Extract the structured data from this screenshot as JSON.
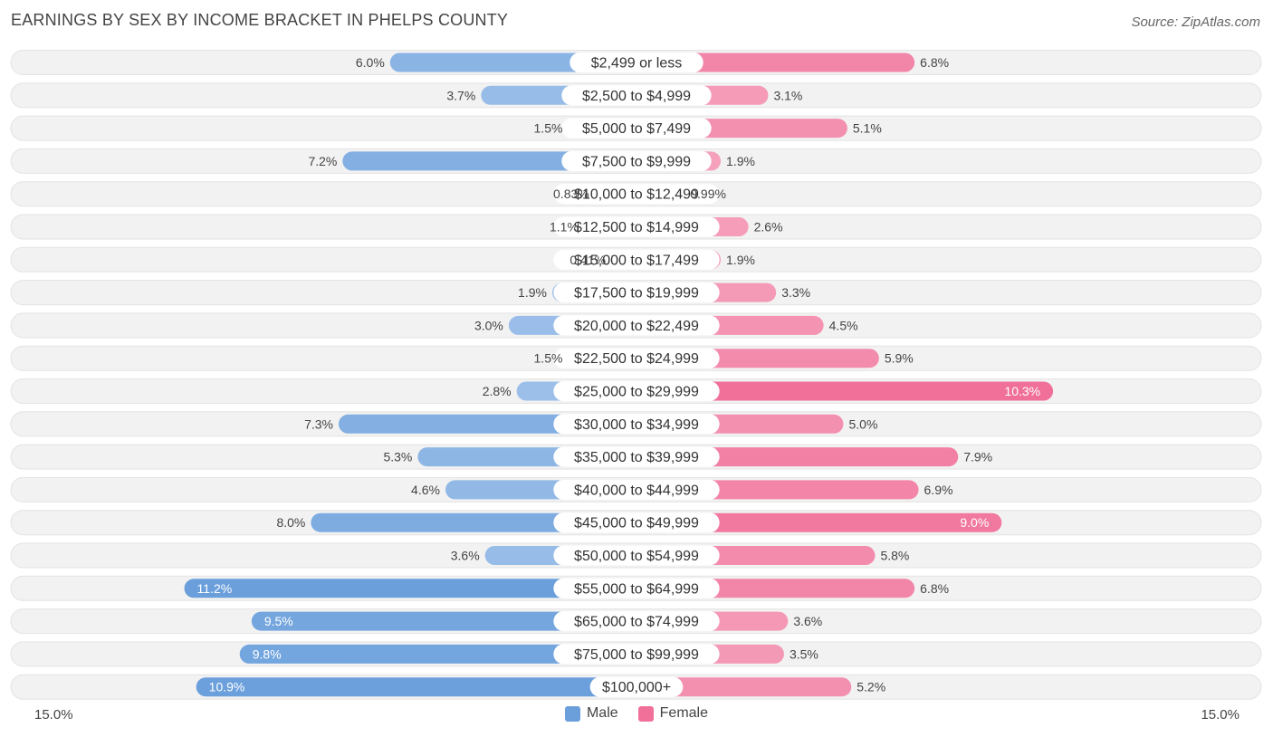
{
  "title": "EARNINGS BY SEX BY INCOME BRACKET IN PHELPS COUNTY",
  "source": "Source: ZipAtlas.com",
  "colors": {
    "male_light": "#a7c6ec",
    "male_dark": "#6a9fdb",
    "female_light": "#f6a8c0",
    "female_dark": "#f07099",
    "row_bg": "#f2f2f2",
    "row_border": "#e3e3e3"
  },
  "chart_data": {
    "type": "bar",
    "orientation": "horizontal-diverging",
    "title": "EARNINGS BY SEX BY INCOME BRACKET IN PHELPS COUNTY",
    "axis_max": 15.0,
    "axis_min_label": "15.0%",
    "axis_max_label": "15.0%",
    "legend": [
      "Male",
      "Female"
    ],
    "legend_position": "bottom-center",
    "categories": [
      "$2,499 or less",
      "$2,500 to $4,999",
      "$5,000 to $7,499",
      "$7,500 to $9,999",
      "$10,000 to $12,499",
      "$12,500 to $14,999",
      "$15,000 to $17,499",
      "$17,500 to $19,999",
      "$20,000 to $22,499",
      "$22,500 to $24,999",
      "$25,000 to $29,999",
      "$30,000 to $34,999",
      "$35,000 to $39,999",
      "$40,000 to $44,999",
      "$45,000 to $49,999",
      "$50,000 to $54,999",
      "$55,000 to $64,999",
      "$65,000 to $74,999",
      "$75,000 to $99,999",
      "$100,000+"
    ],
    "series": [
      {
        "name": "Male",
        "values": [
          6.0,
          3.7,
          1.5,
          7.2,
          0.83,
          1.1,
          0.41,
          1.9,
          3.0,
          1.5,
          2.8,
          7.3,
          5.3,
          4.6,
          8.0,
          3.6,
          11.2,
          9.5,
          9.8,
          10.9
        ],
        "labels": [
          "6.0%",
          "3.7%",
          "1.5%",
          "7.2%",
          "0.83%",
          "1.1%",
          "0.41%",
          "1.9%",
          "3.0%",
          "1.5%",
          "2.8%",
          "7.3%",
          "5.3%",
          "4.6%",
          "8.0%",
          "3.6%",
          "11.2%",
          "9.5%",
          "9.8%",
          "10.9%"
        ]
      },
      {
        "name": "Female",
        "values": [
          6.8,
          3.1,
          5.1,
          1.9,
          0.99,
          2.6,
          1.9,
          3.3,
          4.5,
          5.9,
          10.3,
          5.0,
          7.9,
          6.9,
          9.0,
          5.8,
          6.8,
          3.6,
          3.5,
          5.2
        ],
        "labels": [
          "6.8%",
          "3.1%",
          "5.1%",
          "1.9%",
          "0.99%",
          "2.6%",
          "1.9%",
          "3.3%",
          "4.5%",
          "5.9%",
          "10.3%",
          "5.0%",
          "7.9%",
          "6.9%",
          "9.0%",
          "5.8%",
          "6.8%",
          "3.6%",
          "3.5%",
          "5.2%"
        ]
      }
    ]
  }
}
